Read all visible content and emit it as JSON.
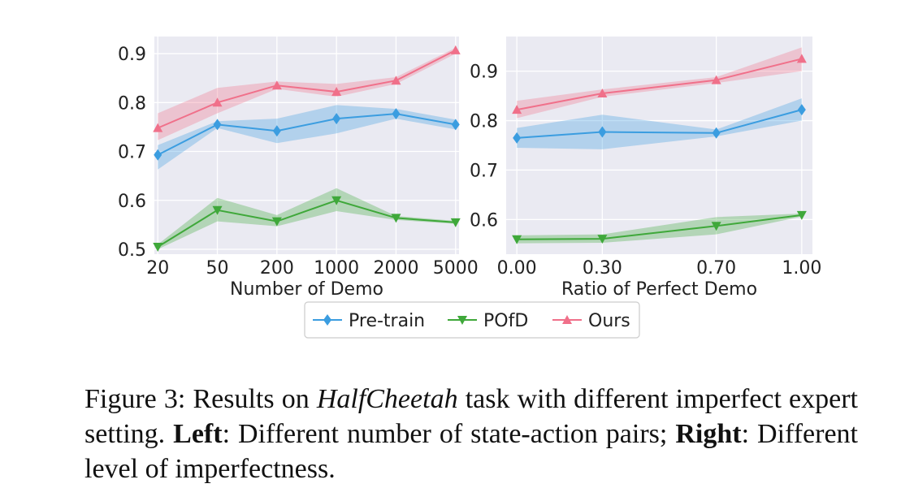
{
  "figure": {
    "caption": {
      "label": "Figure 3:",
      "text_before": " Results on ",
      "task": "HalfCheetah",
      "text_after_task": " task with different imperfect expert setting. ",
      "left_label": "Left",
      "left_text": ": Different number of state-action pairs; ",
      "right_label": "Right",
      "right_text": ": Different level of imperfectness."
    }
  },
  "legend": {
    "entries": [
      {
        "name": "Pre-train",
        "color": "#3b9de0",
        "marker": "diamond"
      },
      {
        "name": "POfD",
        "color": "#3fa83a",
        "marker": "triangle-down"
      },
      {
        "name": "Ours",
        "color": "#f0708a",
        "marker": "triangle-up"
      }
    ],
    "placement": "bottom-center"
  },
  "chart_data": [
    {
      "type": "line",
      "xlabel": "Number of Demo",
      "ylabel": "",
      "categories": [
        "20",
        "50",
        "200",
        "1000",
        "2000",
        "5000"
      ],
      "ylim": [
        0.49,
        0.935
      ],
      "yticks": [
        0.5,
        0.6,
        0.7,
        0.8,
        0.9
      ],
      "ytick_labels": [
        "0.5",
        "0.6",
        "0.7",
        "0.8",
        "0.9"
      ],
      "grid": true,
      "series": [
        {
          "name": "Pre-train",
          "values": [
            0.693,
            0.755,
            0.742,
            0.767,
            0.777,
            0.755
          ],
          "lower": [
            0.663,
            0.748,
            0.717,
            0.737,
            0.767,
            0.745
          ],
          "upper": [
            0.713,
            0.762,
            0.767,
            0.795,
            0.787,
            0.765
          ]
        },
        {
          "name": "POfD",
          "values": [
            0.505,
            0.58,
            0.557,
            0.6,
            0.564,
            0.555
          ],
          "lower": [
            0.5,
            0.557,
            0.547,
            0.578,
            0.56,
            0.552
          ],
          "upper": [
            0.51,
            0.605,
            0.57,
            0.625,
            0.568,
            0.558
          ]
        },
        {
          "name": "Ours",
          "values": [
            0.748,
            0.8,
            0.835,
            0.822,
            0.845,
            0.907
          ],
          "lower": [
            0.723,
            0.778,
            0.828,
            0.812,
            0.838,
            0.9
          ],
          "upper": [
            0.778,
            0.83,
            0.843,
            0.838,
            0.852,
            0.912
          ]
        }
      ]
    },
    {
      "type": "line",
      "xlabel": "Ratio of Perfect Demo",
      "ylabel": "",
      "x": [
        0.0,
        0.3,
        0.7,
        1.0
      ],
      "xtick_labels": [
        "0.00",
        "0.30",
        "0.70",
        "1.00"
      ],
      "xlim": [
        -0.0375,
        1.0375
      ],
      "ylim": [
        0.53,
        0.97
      ],
      "yticks": [
        0.6,
        0.7,
        0.8,
        0.9
      ],
      "ytick_labels": [
        "0.6",
        "0.7",
        "0.8",
        "0.9"
      ],
      "grid": true,
      "series": [
        {
          "name": "Pre-train",
          "values": [
            0.765,
            0.777,
            0.775,
            0.822
          ],
          "lower": [
            0.745,
            0.742,
            0.768,
            0.8
          ],
          "upper": [
            0.785,
            0.812,
            0.782,
            0.845
          ]
        },
        {
          "name": "POfD",
          "values": [
            0.56,
            0.561,
            0.587,
            0.609
          ],
          "lower": [
            0.552,
            0.553,
            0.57,
            0.606
          ],
          "upper": [
            0.568,
            0.57,
            0.605,
            0.612
          ]
        },
        {
          "name": "Ours",
          "values": [
            0.822,
            0.855,
            0.882,
            0.925
          ],
          "lower": [
            0.805,
            0.848,
            0.876,
            0.9
          ],
          "upper": [
            0.84,
            0.863,
            0.888,
            0.948
          ]
        }
      ]
    }
  ]
}
